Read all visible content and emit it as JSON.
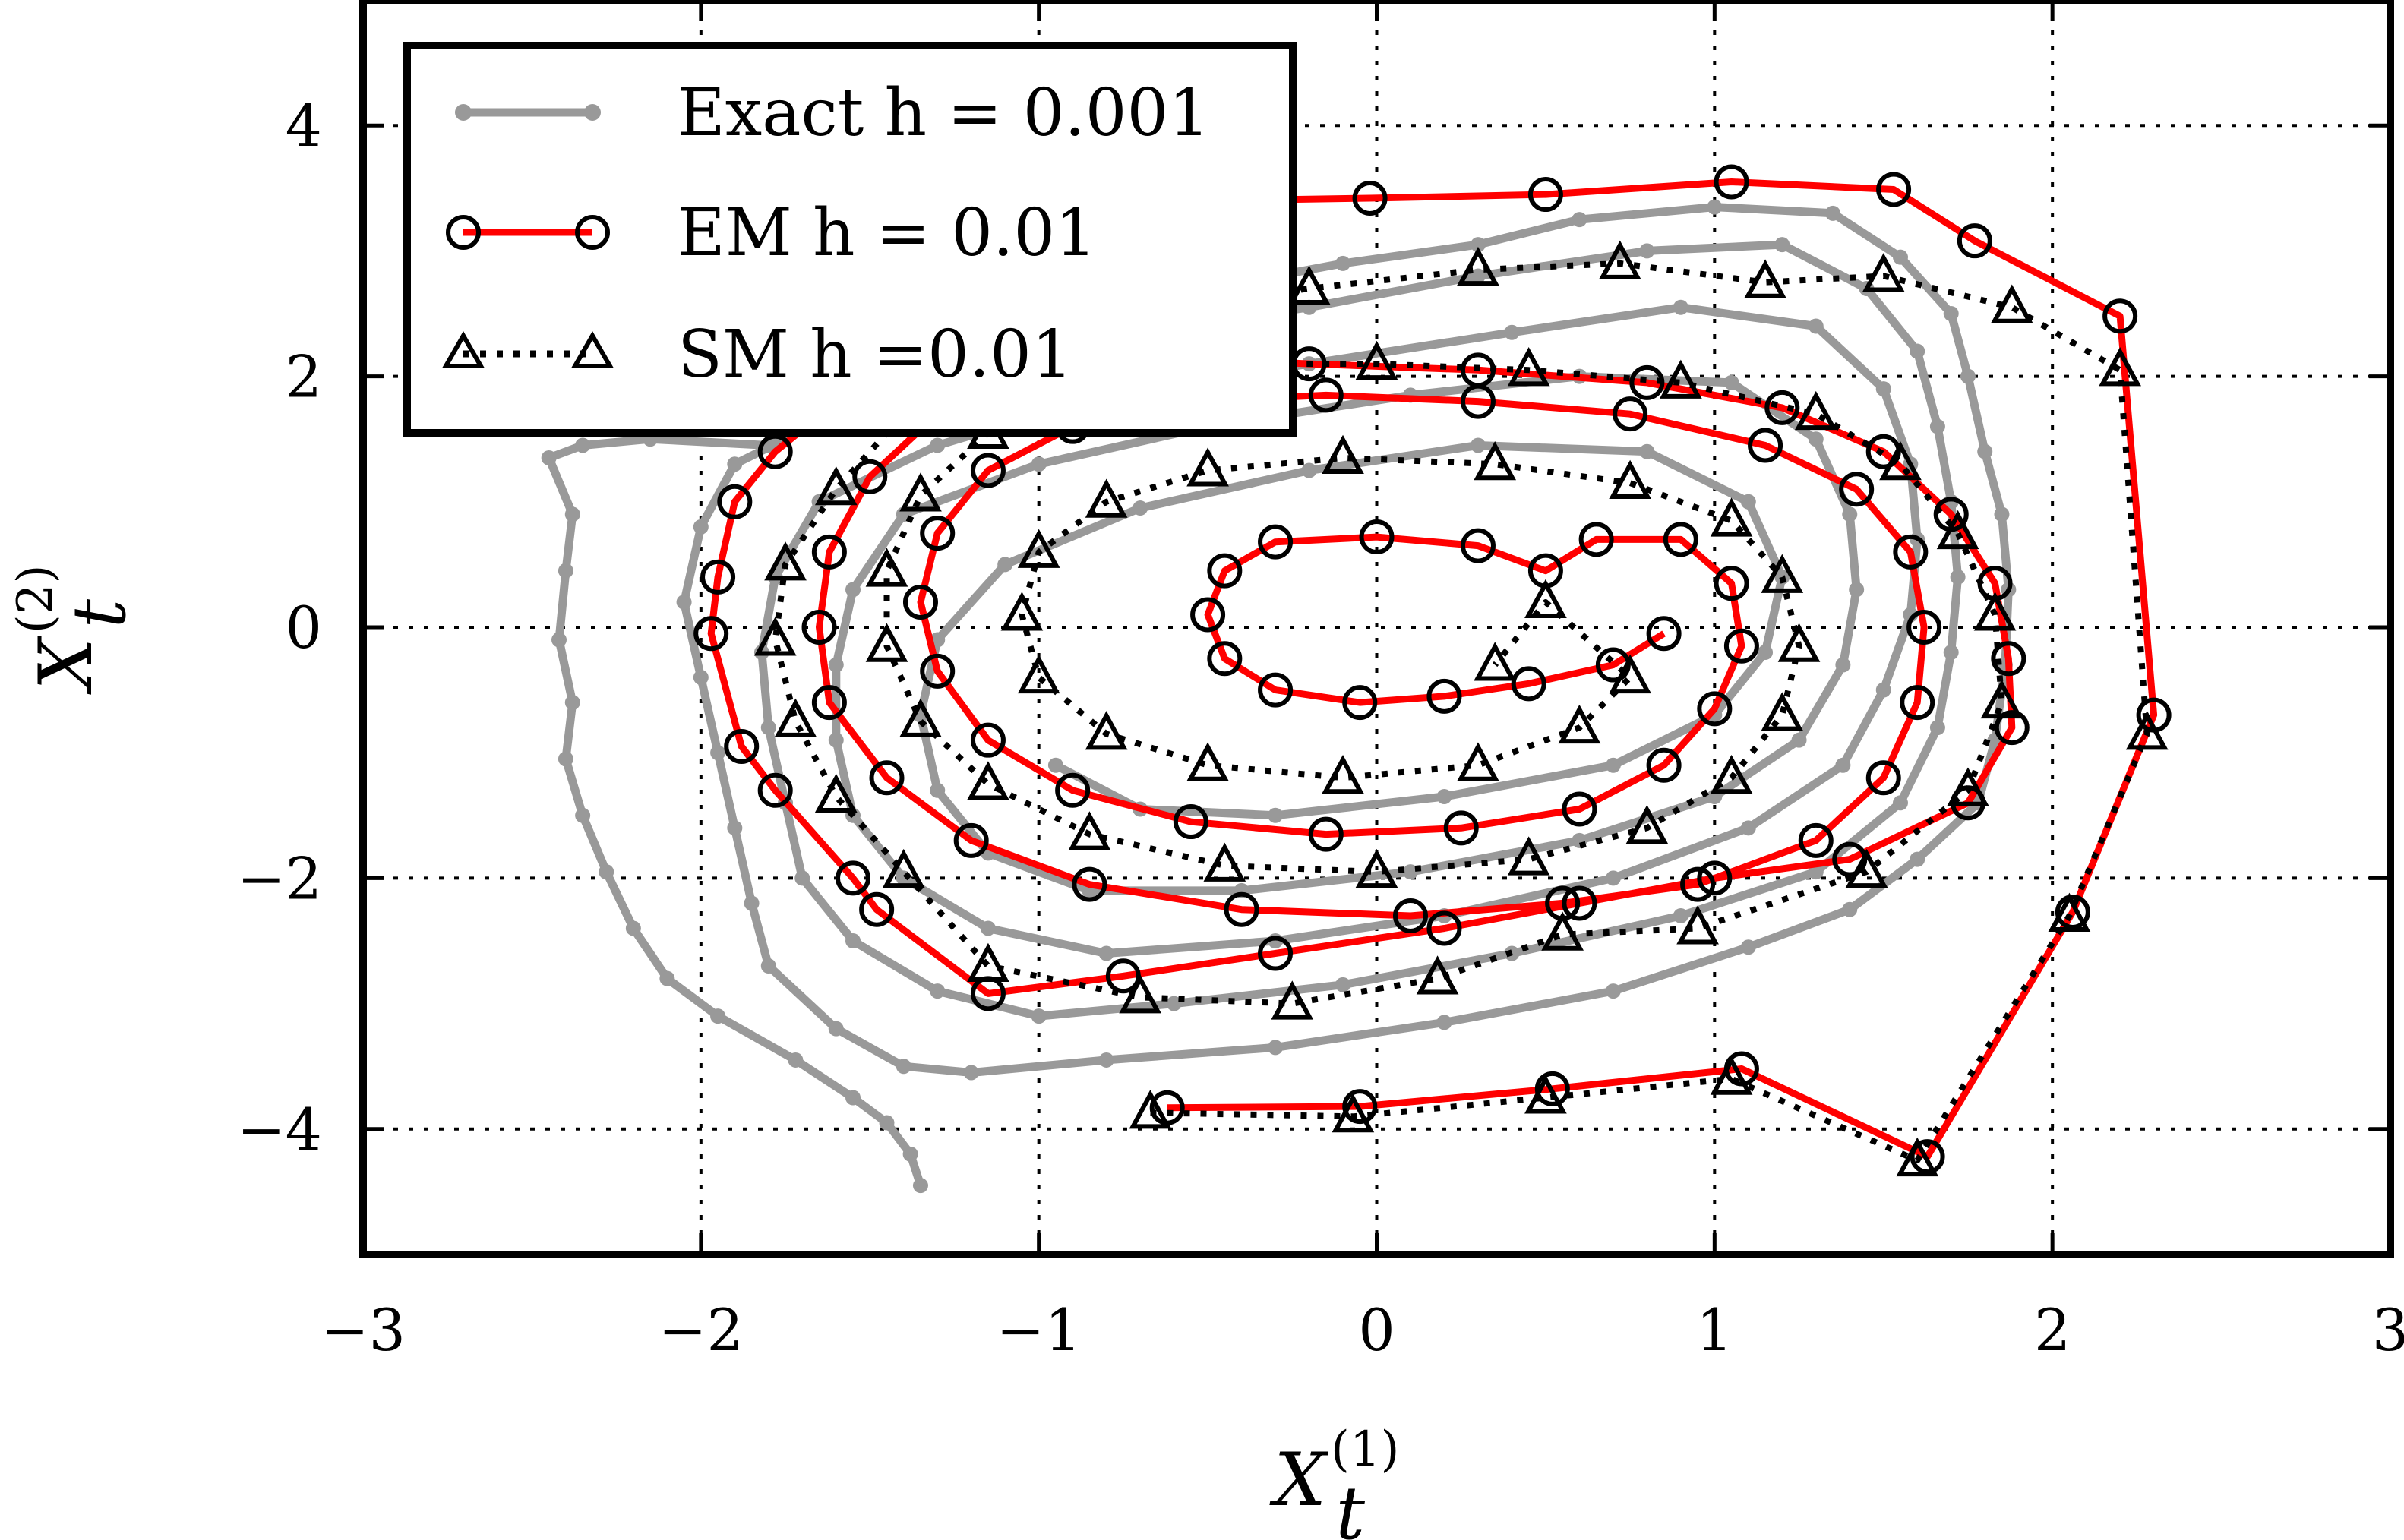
{
  "chart_data": {
    "type": "line",
    "title": "",
    "xlabel": {
      "base": "X",
      "sub": "t",
      "sup": "(1)"
    },
    "ylabel": {
      "base": "X",
      "sub": "t",
      "sup": "(2)"
    },
    "xlim": [
      -3,
      3
    ],
    "ylim": [
      -5,
      5
    ],
    "xticks": [
      -3,
      -2,
      -1,
      0,
      1,
      2,
      3
    ],
    "xtick_labels": [
      "−3",
      "−2",
      "−1",
      "0",
      "1",
      "2",
      "3"
    ],
    "yticks": [
      4,
      2,
      0,
      -2,
      -4
    ],
    "ytick_labels": [
      "4",
      "2",
      "0",
      "−2",
      "−4"
    ],
    "grid": true,
    "legend_position": "top-left",
    "series": [
      {
        "name": "Exact h = 0.001",
        "color": "#999999",
        "marker": "dot",
        "line": "solid",
        "points": [
          [
            -1.35,
            -4.45
          ],
          [
            -1.38,
            -4.2
          ],
          [
            -1.45,
            -3.95
          ],
          [
            -1.55,
            -3.75
          ],
          [
            -1.72,
            -3.45
          ],
          [
            -1.95,
            -3.1
          ],
          [
            -2.1,
            -2.8
          ],
          [
            -2.2,
            -2.4
          ],
          [
            -2.28,
            -1.95
          ],
          [
            -2.35,
            -1.5
          ],
          [
            -2.4,
            -1.05
          ],
          [
            -2.38,
            -0.6
          ],
          [
            -2.42,
            -0.1
          ],
          [
            -2.4,
            0.45
          ],
          [
            -2.38,
            0.9
          ],
          [
            -2.45,
            1.35
          ],
          [
            -2.35,
            1.45
          ],
          [
            -2.15,
            1.5
          ],
          [
            -1.8,
            1.45
          ],
          [
            -1.5,
            1.9
          ],
          [
            -1.1,
            2.3
          ],
          [
            -0.6,
            2.65
          ],
          [
            -0.1,
            2.9
          ],
          [
            0.3,
            3.05
          ],
          [
            0.6,
            3.25
          ],
          [
            1.0,
            3.35
          ],
          [
            1.35,
            3.3
          ],
          [
            1.55,
            2.95
          ],
          [
            1.7,
            2.5
          ],
          [
            1.75,
            2.0
          ],
          [
            1.8,
            1.4
          ],
          [
            1.85,
            0.9
          ],
          [
            1.87,
            0.3
          ],
          [
            1.86,
            -0.3
          ],
          [
            1.83,
            -0.9
          ],
          [
            1.78,
            -1.4
          ],
          [
            1.6,
            -1.85
          ],
          [
            1.4,
            -2.25
          ],
          [
            1.1,
            -2.55
          ],
          [
            0.7,
            -2.9
          ],
          [
            0.2,
            -3.15
          ],
          [
            -0.3,
            -3.35
          ],
          [
            -0.8,
            -3.45
          ],
          [
            -1.2,
            -3.55
          ],
          [
            -1.4,
            -3.5
          ],
          [
            -1.6,
            -3.2
          ],
          [
            -1.8,
            -2.7
          ],
          [
            -1.85,
            -2.2
          ],
          [
            -1.9,
            -1.6
          ],
          [
            -1.95,
            -1.0
          ],
          [
            -2.0,
            -0.4
          ],
          [
            -2.05,
            0.2
          ],
          [
            -2.0,
            0.8
          ],
          [
            -1.9,
            1.3
          ],
          [
            -1.6,
            1.7
          ],
          [
            -1.2,
            2.05
          ],
          [
            -0.7,
            2.35
          ],
          [
            -0.2,
            2.55
          ],
          [
            0.3,
            2.8
          ],
          [
            0.8,
            3.0
          ],
          [
            1.2,
            3.05
          ],
          [
            1.45,
            2.7
          ],
          [
            1.6,
            2.2
          ],
          [
            1.66,
            1.6
          ],
          [
            1.7,
            1.0
          ],
          [
            1.72,
            0.4
          ],
          [
            1.7,
            -0.2
          ],
          [
            1.66,
            -0.8
          ],
          [
            1.55,
            -1.4
          ],
          [
            1.3,
            -1.95
          ],
          [
            0.9,
            -2.3
          ],
          [
            0.4,
            -2.6
          ],
          [
            -0.1,
            -2.85
          ],
          [
            -0.6,
            -3.0
          ],
          [
            -1.0,
            -3.1
          ],
          [
            -1.3,
            -2.9
          ],
          [
            -1.55,
            -2.5
          ],
          [
            -1.7,
            -2.0
          ],
          [
            -1.75,
            -1.4
          ],
          [
            -1.8,
            -0.8
          ],
          [
            -1.82,
            -0.2
          ],
          [
            -1.78,
            0.4
          ],
          [
            -1.65,
            1.0
          ],
          [
            -1.3,
            1.45
          ],
          [
            -0.8,
            1.85
          ],
          [
            -0.2,
            2.1
          ],
          [
            0.4,
            2.35
          ],
          [
            0.9,
            2.55
          ],
          [
            1.3,
            2.4
          ],
          [
            1.5,
            1.9
          ],
          [
            1.58,
            1.3
          ],
          [
            1.6,
            0.7
          ],
          [
            1.58,
            0.1
          ],
          [
            1.5,
            -0.5
          ],
          [
            1.38,
            -1.1
          ],
          [
            1.1,
            -1.6
          ],
          [
            0.7,
            -2.0
          ],
          [
            0.2,
            -2.3
          ],
          [
            -0.3,
            -2.5
          ],
          [
            -0.8,
            -2.6
          ],
          [
            -1.15,
            -2.4
          ],
          [
            -1.4,
            -2.0
          ],
          [
            -1.55,
            -1.5
          ],
          [
            -1.6,
            -0.9
          ],
          [
            -1.6,
            -0.3
          ],
          [
            -1.55,
            0.3
          ],
          [
            -1.4,
            0.9
          ],
          [
            -1.0,
            1.3
          ],
          [
            -0.5,
            1.6
          ],
          [
            0.1,
            1.85
          ],
          [
            0.6,
            2.0
          ],
          [
            1.05,
            1.95
          ],
          [
            1.3,
            1.5
          ],
          [
            1.4,
            0.9
          ],
          [
            1.42,
            0.3
          ],
          [
            1.38,
            -0.3
          ],
          [
            1.25,
            -0.9
          ],
          [
            1.0,
            -1.35
          ],
          [
            0.6,
            -1.7
          ],
          [
            0.1,
            -1.95
          ],
          [
            -0.4,
            -2.1
          ],
          [
            -0.85,
            -2.1
          ],
          [
            -1.15,
            -1.8
          ],
          [
            -1.3,
            -1.3
          ],
          [
            -1.35,
            -0.7
          ],
          [
            -1.3,
            -0.1
          ],
          [
            -1.1,
            0.5
          ],
          [
            -0.7,
            0.95
          ],
          [
            -0.2,
            1.25
          ],
          [
            0.3,
            1.45
          ],
          [
            0.8,
            1.4
          ],
          [
            1.1,
            1.0
          ],
          [
            1.2,
            0.4
          ],
          [
            1.15,
            -0.2
          ],
          [
            1.0,
            -0.7
          ],
          [
            0.7,
            -1.1
          ],
          [
            0.2,
            -1.35
          ],
          [
            -0.3,
            -1.5
          ],
          [
            -0.7,
            -1.45
          ],
          [
            -0.95,
            -1.1
          ]
        ]
      },
      {
        "name": "EM h = 0.01",
        "color": "#ff0000",
        "marker": "circle",
        "line": "solid",
        "points": [
          [
            -0.62,
            -3.83
          ],
          [
            -0.05,
            -3.82
          ],
          [
            0.52,
            -3.68
          ],
          [
            1.08,
            -3.52
          ],
          [
            1.63,
            -4.22
          ],
          [
            2.06,
            -2.27
          ],
          [
            2.3,
            -0.7
          ],
          [
            2.2,
            2.48
          ],
          [
            1.77,
            3.08
          ],
          [
            1.53,
            3.49
          ],
          [
            1.05,
            3.55
          ],
          [
            0.5,
            3.45
          ],
          [
            -0.02,
            3.42
          ],
          [
            -0.5,
            3.4
          ],
          [
            -0.9,
            3.3
          ],
          [
            -1.2,
            2.9
          ],
          [
            -1.45,
            2.3
          ],
          [
            -1.62,
            1.75
          ],
          [
            -1.78,
            1.4
          ],
          [
            -1.9,
            1.0
          ],
          [
            -1.95,
            0.4
          ],
          [
            -1.97,
            -0.05
          ],
          [
            -1.88,
            -0.95
          ],
          [
            -1.78,
            -1.3
          ],
          [
            -1.55,
            -2.0
          ],
          [
            -1.48,
            -2.25
          ],
          [
            -1.15,
            -2.92
          ],
          [
            -0.75,
            -2.78
          ],
          [
            -0.3,
            -2.6
          ],
          [
            0.2,
            -2.4
          ],
          [
            0.6,
            -2.2
          ],
          [
            1.0,
            -2.0
          ],
          [
            1.4,
            -1.85
          ],
          [
            1.75,
            -1.4
          ],
          [
            1.88,
            -0.8
          ],
          [
            1.87,
            -0.25
          ],
          [
            1.83,
            0.35
          ],
          [
            1.7,
            0.9
          ],
          [
            1.5,
            1.4
          ],
          [
            1.2,
            1.75
          ],
          [
            0.8,
            1.95
          ],
          [
            0.3,
            2.05
          ],
          [
            -0.2,
            2.1
          ],
          [
            -0.6,
            2.15
          ],
          [
            -1.0,
            2.0
          ],
          [
            -1.3,
            1.7
          ],
          [
            -1.5,
            1.2
          ],
          [
            -1.62,
            0.6
          ],
          [
            -1.65,
            0.0
          ],
          [
            -1.62,
            -0.6
          ],
          [
            -1.45,
            -1.2
          ],
          [
            -1.2,
            -1.7
          ],
          [
            -0.85,
            -2.05
          ],
          [
            -0.4,
            -2.25
          ],
          [
            0.1,
            -2.3
          ],
          [
            0.55,
            -2.2
          ],
          [
            0.95,
            -2.05
          ],
          [
            1.3,
            -1.7
          ],
          [
            1.5,
            -1.2
          ],
          [
            1.6,
            -0.6
          ],
          [
            1.62,
            0.0
          ],
          [
            1.58,
            0.6
          ],
          [
            1.42,
            1.1
          ],
          [
            1.15,
            1.45
          ],
          [
            0.75,
            1.7
          ],
          [
            0.3,
            1.8
          ],
          [
            -0.15,
            1.85
          ],
          [
            -0.55,
            1.8
          ],
          [
            -0.9,
            1.6
          ],
          [
            -1.15,
            1.25
          ],
          [
            -1.3,
            0.75
          ],
          [
            -1.35,
            0.2
          ],
          [
            -1.3,
            -0.35
          ],
          [
            -1.15,
            -0.9
          ],
          [
            -0.9,
            -1.3
          ],
          [
            -0.55,
            -1.55
          ],
          [
            -0.15,
            -1.65
          ],
          [
            0.25,
            -1.6
          ],
          [
            0.6,
            -1.45
          ],
          [
            0.85,
            -1.1
          ],
          [
            1.0,
            -0.65
          ],
          [
            1.08,
            -0.15
          ],
          [
            1.05,
            0.35
          ],
          [
            0.9,
            0.7
          ],
          [
            0.65,
            0.7
          ],
          [
            0.5,
            0.45
          ],
          [
            0.3,
            0.65
          ],
          [
            0.0,
            0.72
          ],
          [
            -0.3,
            0.68
          ],
          [
            -0.45,
            0.45
          ],
          [
            -0.5,
            0.1
          ],
          [
            -0.45,
            -0.25
          ],
          [
            -0.3,
            -0.5
          ],
          [
            -0.05,
            -0.6
          ],
          [
            0.2,
            -0.55
          ],
          [
            0.45,
            -0.45
          ],
          [
            0.7,
            -0.3
          ],
          [
            0.85,
            -0.05
          ]
        ]
      },
      {
        "name": "SM h =0.01",
        "color": "#000000",
        "marker": "triangle",
        "line": "dotted",
        "points": [
          [
            -0.67,
            -3.87
          ],
          [
            -0.07,
            -3.9
          ],
          [
            0.5,
            -3.75
          ],
          [
            1.05,
            -3.6
          ],
          [
            1.6,
            -4.25
          ],
          [
            2.05,
            -2.3
          ],
          [
            2.28,
            -0.85
          ],
          [
            2.2,
            2.05
          ],
          [
            1.88,
            2.55
          ],
          [
            1.5,
            2.8
          ],
          [
            1.15,
            2.75
          ],
          [
            0.72,
            2.9
          ],
          [
            0.3,
            2.85
          ],
          [
            -0.2,
            2.7
          ],
          [
            -0.7,
            2.5
          ],
          [
            -1.1,
            2.2
          ],
          [
            -1.4,
            1.7
          ],
          [
            -1.6,
            1.1
          ],
          [
            -1.75,
            0.5
          ],
          [
            -1.78,
            -0.1
          ],
          [
            -1.72,
            -0.75
          ],
          [
            -1.6,
            -1.35
          ],
          [
            -1.4,
            -1.95
          ],
          [
            -1.15,
            -2.7
          ],
          [
            -0.7,
            -2.95
          ],
          [
            -0.25,
            -3.0
          ],
          [
            0.18,
            -2.8
          ],
          [
            0.55,
            -2.45
          ],
          [
            0.95,
            -2.4
          ],
          [
            1.45,
            -1.95
          ],
          [
            1.75,
            -1.3
          ],
          [
            1.85,
            -0.6
          ],
          [
            1.83,
            0.1
          ],
          [
            1.72,
            0.75
          ],
          [
            1.55,
            1.3
          ],
          [
            1.3,
            1.7
          ],
          [
            0.9,
            1.95
          ],
          [
            0.45,
            2.05
          ],
          [
            0.0,
            2.1
          ],
          [
            -0.45,
            2.1
          ],
          [
            -0.85,
            1.9
          ],
          [
            -1.15,
            1.55
          ],
          [
            -1.35,
            1.05
          ],
          [
            -1.45,
            0.45
          ],
          [
            -1.45,
            -0.15
          ],
          [
            -1.35,
            -0.75
          ],
          [
            -1.15,
            -1.25
          ],
          [
            -0.85,
            -1.65
          ],
          [
            -0.45,
            -1.9
          ],
          [
            0.0,
            -1.95
          ],
          [
            0.45,
            -1.85
          ],
          [
            0.8,
            -1.6
          ],
          [
            1.05,
            -1.2
          ],
          [
            1.2,
            -0.7
          ],
          [
            1.25,
            -0.15
          ],
          [
            1.2,
            0.4
          ],
          [
            1.05,
            0.85
          ],
          [
            0.75,
            1.15
          ],
          [
            0.35,
            1.3
          ],
          [
            -0.1,
            1.35
          ],
          [
            -0.5,
            1.25
          ],
          [
            -0.8,
            1.0
          ],
          [
            -1.0,
            0.6
          ],
          [
            -1.05,
            0.1
          ],
          [
            -1.0,
            -0.4
          ],
          [
            -0.8,
            -0.85
          ],
          [
            -0.5,
            -1.1
          ],
          [
            -0.1,
            -1.2
          ],
          [
            0.3,
            -1.1
          ],
          [
            0.6,
            -0.8
          ],
          [
            0.75,
            -0.4
          ],
          [
            0.5,
            0.2
          ],
          [
            0.35,
            -0.3
          ]
        ]
      }
    ]
  }
}
